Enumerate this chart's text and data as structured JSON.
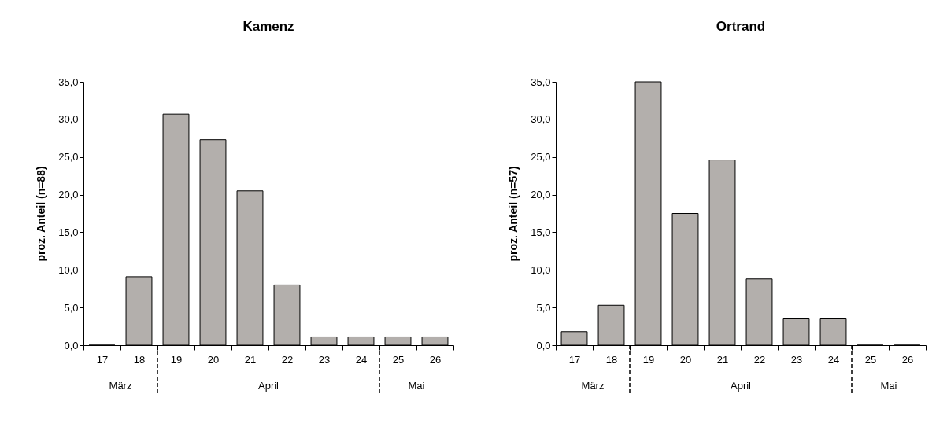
{
  "chart_data": [
    {
      "type": "bar",
      "title": "Kamenz",
      "ylabel": "proz. Anteil (n=88)",
      "categories": [
        "17",
        "18",
        "19",
        "20",
        "21",
        "22",
        "23",
        "24",
        "25",
        "26"
      ],
      "series": [
        {
          "color": "#b3afac",
          "values": [
            0,
            9.1,
            30.7,
            27.3,
            20.5,
            8.0,
            1.1,
            1.1,
            1.1,
            1.1
          ]
        }
      ],
      "ylim": [
        0,
        35
      ],
      "yticks": [
        {
          "value": 0,
          "label": "0,0"
        },
        {
          "value": 5,
          "label": "5,0"
        },
        {
          "value": 10,
          "label": "10,0"
        },
        {
          "value": 15,
          "label": "15,0"
        },
        {
          "value": 20,
          "label": "20,0"
        },
        {
          "value": 25,
          "label": "25,0"
        },
        {
          "value": 30,
          "label": "30,0"
        },
        {
          "value": 35,
          "label": "35,0"
        }
      ],
      "annotations": [
        "März",
        "April",
        "Mai"
      ]
    },
    {
      "type": "bar",
      "title": "Ortrand",
      "ylabel": "proz. Anteil (n=57)",
      "categories": [
        "17",
        "18",
        "19",
        "20",
        "21",
        "22",
        "23",
        "24",
        "25",
        "26"
      ],
      "series": [
        {
          "color": "#b3afac",
          "values": [
            1.8,
            5.3,
            35.0,
            17.5,
            24.6,
            8.8,
            3.5,
            3.5,
            0,
            0
          ]
        }
      ],
      "ylim": [
        0,
        35
      ],
      "yticks": [
        {
          "value": 0,
          "label": "0,0"
        },
        {
          "value": 5,
          "label": "5,0"
        },
        {
          "value": 10,
          "label": "10,0"
        },
        {
          "value": 15,
          "label": "15,0"
        },
        {
          "value": 20,
          "label": "20,0"
        },
        {
          "value": 25,
          "label": "25,0"
        },
        {
          "value": 30,
          "label": "30,0"
        },
        {
          "value": 35,
          "label": "35,0"
        }
      ],
      "annotations": [
        "März",
        "April",
        "Mai"
      ]
    }
  ]
}
